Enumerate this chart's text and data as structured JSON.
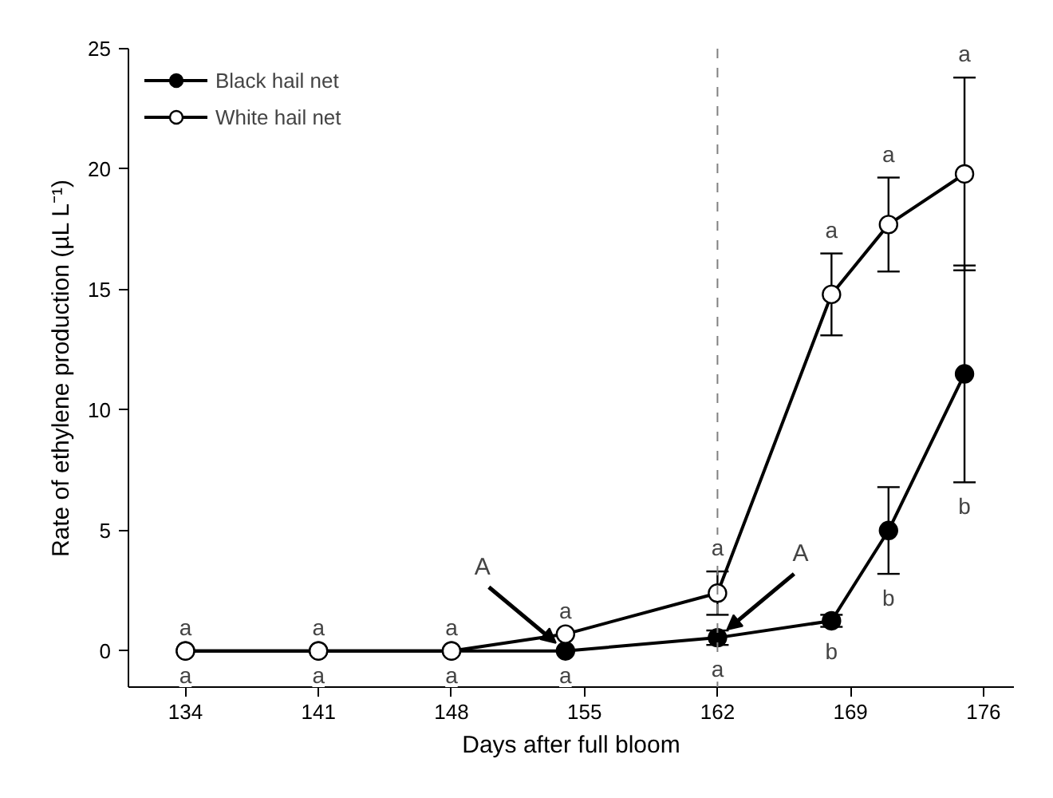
{
  "chart_data": {
    "type": "line",
    "xlabel": "Days after full bloom",
    "ylabel": "Rate of ethylene production (µL L⁻¹)",
    "x": [
      134,
      141,
      148,
      154,
      162,
      168,
      171,
      175
    ],
    "series": [
      {
        "name": "Black hail net",
        "color": "#000000",
        "values": [
          0,
          0,
          0,
          0,
          0.55,
          1.25,
          5.0,
          11.5
        ],
        "errors": [
          null,
          null,
          null,
          null,
          0.3,
          0.25,
          1.8,
          4.5
        ]
      },
      {
        "name": "White hail net",
        "color": "#ffffff",
        "values": [
          0,
          0,
          0,
          0.7,
          2.4,
          14.8,
          17.7,
          19.8
        ],
        "errors": [
          null,
          null,
          null,
          null,
          0.9,
          1.7,
          1.95,
          4.0
        ]
      }
    ],
    "xlim": [
      131,
      177.6
    ],
    "ylim": [
      -1.5,
      25
    ],
    "xticks": [
      134,
      141,
      148,
      155,
      162,
      169,
      176
    ],
    "yticks": [
      0,
      5,
      10,
      15,
      20,
      25
    ],
    "grid": false,
    "legend": "top left",
    "marker": "circle",
    "line_style": "solid",
    "ref_lines": [
      {
        "axis": "x",
        "value": 162,
        "label": null,
        "line_style": "dashed",
        "color": "#808080"
      }
    ],
    "annotations": [
      {
        "text": "a",
        "x": 134,
        "y": 0
      },
      {
        "text": "a",
        "x": 134,
        "y": 0
      },
      {
        "text": "a",
        "x": 141,
        "y": 0
      },
      {
        "text": "a",
        "x": 141,
        "y": 0
      },
      {
        "text": "a",
        "x": 148,
        "y": 0
      },
      {
        "text": "a",
        "x": 148,
        "y": 0
      },
      {
        "text": "a",
        "x": 154,
        "y": 0.7
      },
      {
        "text": "a",
        "x": 154,
        "y": 0
      },
      {
        "text": "a",
        "x": 162,
        "y": 3.3
      },
      {
        "text": "a",
        "x": 162,
        "y": 0.25
      },
      {
        "text": "a",
        "x": 168,
        "y": 16.5
      },
      {
        "text": "b",
        "x": 168,
        "y": 1.0
      },
      {
        "text": "a",
        "x": 171,
        "y": 19.65
      },
      {
        "text": "b",
        "x": 171,
        "y": 3.2
      },
      {
        "text": "a",
        "x": 175,
        "y": 23.8
      },
      {
        "text": "b",
        "x": 175,
        "y": 7.0
      },
      {
        "text": "A",
        "x": 154,
        "y": 0
      },
      {
        "text": "A",
        "x": 162,
        "y": 0.55
      }
    ]
  }
}
